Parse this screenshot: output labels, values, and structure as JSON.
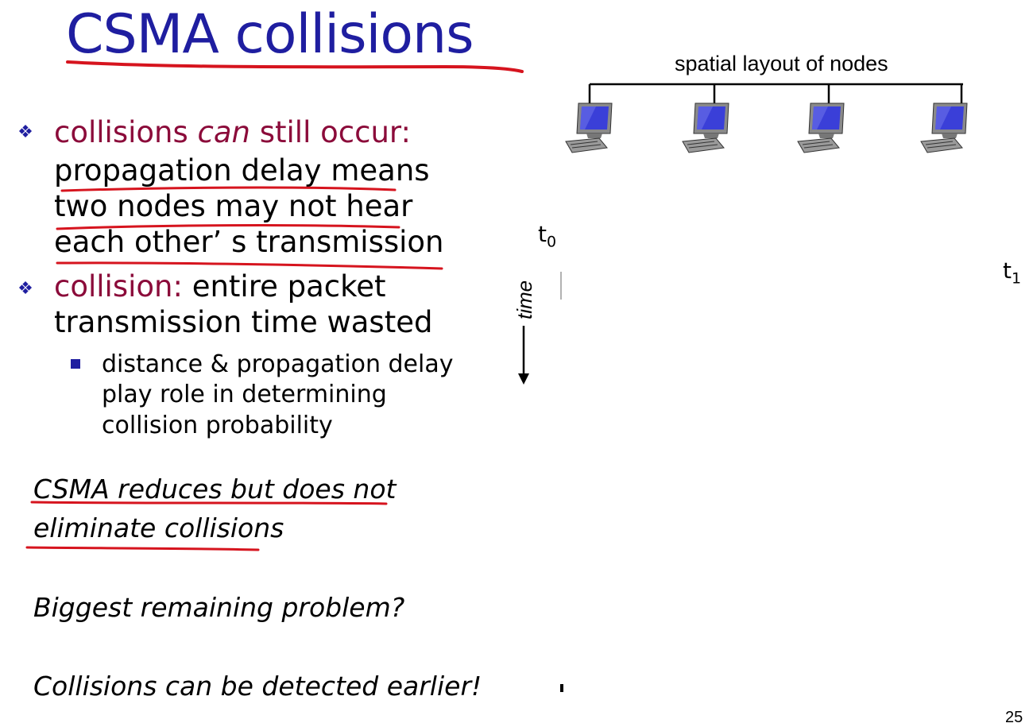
{
  "slide": {
    "title": "CSMA collisions",
    "page_number": "25"
  },
  "bullets": [
    {
      "highlight_1": "collisions ",
      "emphasis": "can",
      "highlight_2": " still occur:",
      "lines": [
        "propagation delay means",
        "two nodes may not hear",
        "each other’ s transmission"
      ]
    },
    {
      "highlight": "collision:",
      "rest": " entire packet",
      "lines": [
        "transmission time wasted"
      ],
      "sub_bullets": [
        {
          "lines": [
            "distance & propagation delay",
            "play role in determining",
            "collision probability"
          ]
        }
      ]
    }
  ],
  "notes": [
    "CSMA reduces but does not",
    "eliminate collisions",
    "Biggest remaining problem?",
    "Collisions can be detected earlier!"
  ],
  "diagram": {
    "caption": "spatial layout of nodes",
    "axis_label": "time",
    "t0": "t",
    "t0_sub": "0",
    "t1": "t",
    "t1_sub": "1",
    "nodes": [
      {
        "icon": "computer-icon"
      },
      {
        "icon": "computer-icon"
      },
      {
        "icon": "computer-icon"
      },
      {
        "icon": "computer-icon"
      }
    ]
  },
  "colors": {
    "title_blue": "#1f1ea0",
    "maroon": "#8b0b3a",
    "annotation_red": "#d6141e"
  }
}
